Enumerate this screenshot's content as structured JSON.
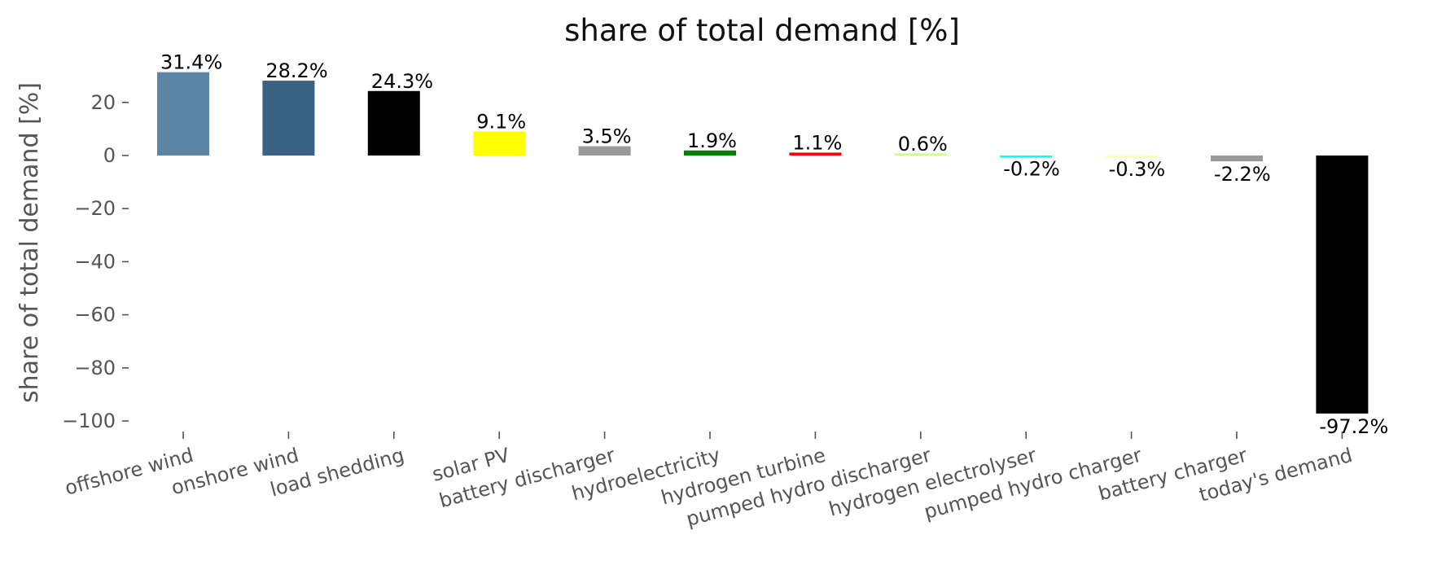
{
  "chart_data": {
    "type": "bar",
    "title": "share of total demand [%]",
    "xlabel": "",
    "ylabel": "share of total demand [%]",
    "ylim": [
      -105,
      33
    ],
    "yticks": [
      20,
      0,
      -20,
      -40,
      -60,
      -80,
      -100
    ],
    "ytick_labels": [
      "20",
      "0",
      "−20",
      "−40",
      "−60",
      "−80",
      "−100"
    ],
    "grid": false,
    "legend": "none",
    "categories": [
      "offshore wind",
      "onshore wind",
      "load shedding",
      "solar PV",
      "battery discharger",
      "hydroelectricity",
      "hydrogen turbine",
      "pumped hydro discharger",
      "hydrogen electrolyser",
      "pumped hydro charger",
      "battery charger",
      "today's demand"
    ],
    "values": [
      31.4,
      28.2,
      24.3,
      9.1,
      3.5,
      1.9,
      1.1,
      0.6,
      -0.2,
      -0.3,
      -2.2,
      -97.2
    ],
    "value_labels": [
      "31.4%",
      "28.2%",
      "24.3%",
      "9.1%",
      "3.5%",
      "1.9%",
      "1.1%",
      "0.6%",
      "-0.2%",
      "-0.3%",
      "-2.2%",
      "-97.2%"
    ],
    "colors": [
      "#5d84a3",
      "#3a6182",
      "#000000",
      "#ffff00",
      "#999999",
      "#008000",
      "#ff0000",
      "#ccff88",
      "#00ffff",
      "#ffffaa",
      "#999999",
      "#000000"
    ]
  }
}
